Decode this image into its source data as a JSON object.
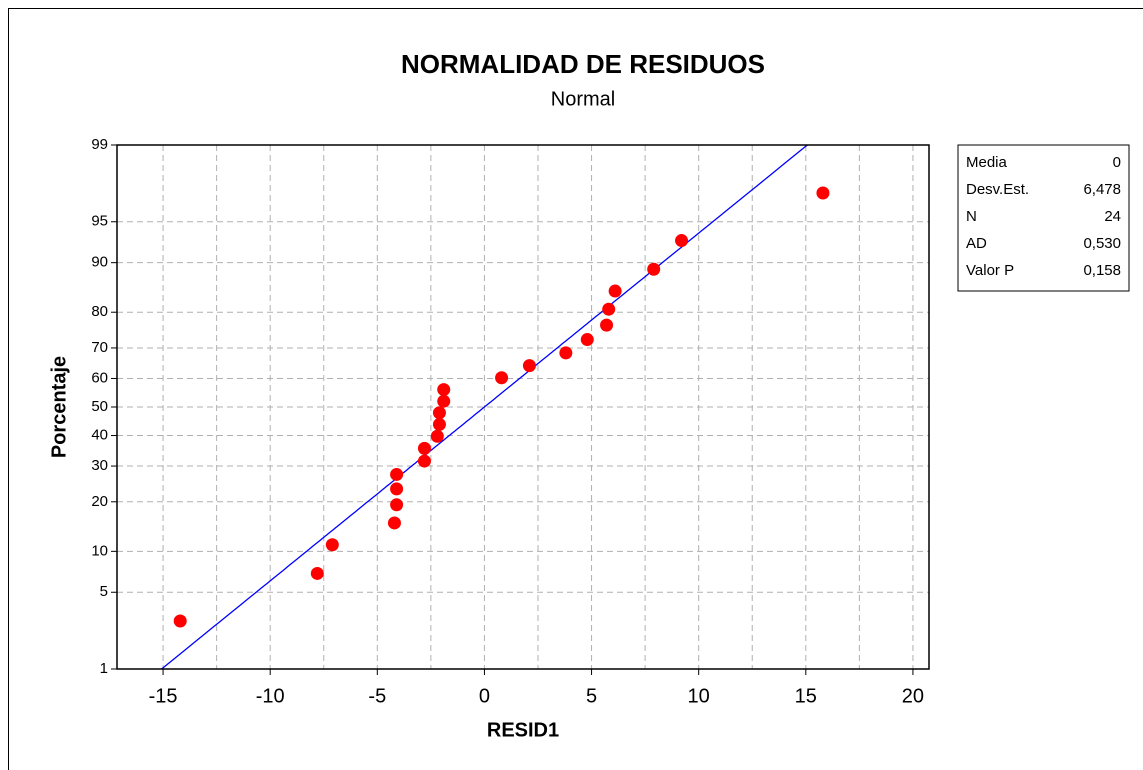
{
  "chart_data": {
    "type": "scatter",
    "title": "NORMALIDAD DE RESIDUOS",
    "subtitle": "Normal",
    "x_label": "RESID1",
    "y_label": "Porcentaje",
    "x": [
      -14.2,
      -7.8,
      -7.1,
      -4.2,
      -4.1,
      -4.1,
      -4.1,
      -2.8,
      -2.8,
      -2.2,
      -2.1,
      -2.1,
      -1.9,
      -1.9,
      0.8,
      2.1,
      3.8,
      4.8,
      5.7,
      5.8,
      6.1,
      7.9,
      9.2,
      15.8
    ],
    "values": [
      2.87,
      6.97,
      11.07,
      15.16,
      19.26,
      23.36,
      27.46,
      31.56,
      35.66,
      39.75,
      43.85,
      47.95,
      52.05,
      56.15,
      60.25,
      64.34,
      68.44,
      72.54,
      76.64,
      80.74,
      84.84,
      88.93,
      93.03,
      97.13
    ],
    "color": "#ff0000",
    "line_color": "#0000ff",
    "xlim": [
      -17.15,
      20.75
    ],
    "xticks": [
      -15,
      -10,
      -5,
      0,
      5,
      10,
      15,
      20
    ],
    "xminor_ticks": [
      -12.5,
      -7.5,
      -2.5,
      2.5,
      7.5,
      12.5,
      17.5
    ],
    "ylim": [
      1,
      99
    ],
    "yticks": [
      1,
      5,
      10,
      20,
      30,
      40,
      50,
      60,
      70,
      80,
      90,
      95,
      99
    ],
    "yscale": "probability",
    "grid": true,
    "stats": {
      "labels": [
        "Media",
        "Desv.Est.",
        "N",
        "AD",
        "Valor P"
      ],
      "values": [
        0,
        6.478,
        24,
        0.53,
        0.158
      ],
      "value_labels": [
        "0",
        "6,478",
        "24",
        "0,530",
        "0,158"
      ]
    }
  }
}
